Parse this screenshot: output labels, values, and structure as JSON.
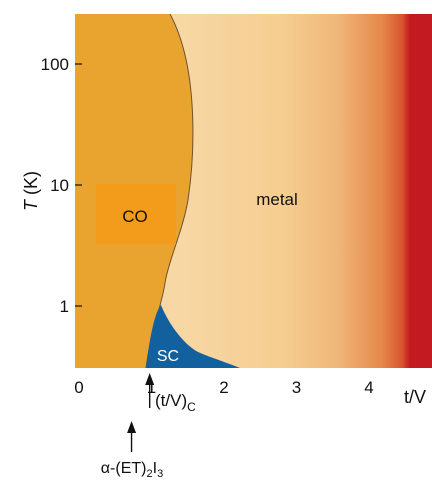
{
  "chart_data": {
    "type": "phase-diagram",
    "xlabel": "t/V",
    "ylabel_italic": "T",
    "ylabel_rest": " (K)",
    "x_range": [
      0,
      4.9
    ],
    "y_range_K": [
      0.3,
      300
    ],
    "y_scale": "log",
    "x_ticks": [
      {
        "value": 0,
        "label": "0"
      },
      {
        "value": 1,
        "label": "1"
      },
      {
        "value": 2,
        "label": "2"
      },
      {
        "value": 3,
        "label": "3"
      },
      {
        "value": 4,
        "label": "4"
      }
    ],
    "y_ticks": [
      {
        "value": 1,
        "label": "1"
      },
      {
        "value": 10,
        "label": "10"
      },
      {
        "value": 100,
        "label": "100"
      }
    ],
    "regions": {
      "co_label": "CO",
      "metal_label": "metal",
      "sc_label": "SC"
    },
    "annotations": {
      "critical_main": "(t/V)",
      "critical_sub": "C",
      "critical_x": 1.03,
      "material_alpha": "α-(ET)",
      "material_sub1": "2",
      "material_mid": "I",
      "material_sub2": "3",
      "material_x": 0.78
    },
    "colors": {
      "co": "#e9a32f",
      "co_box": "#f39c1c",
      "metal_light": "#f7d7a3",
      "metal_mid": "#ef9f5e",
      "metal_dark": "#c31a22",
      "sc": "#12609e",
      "boundary": "#6f5130"
    }
  }
}
